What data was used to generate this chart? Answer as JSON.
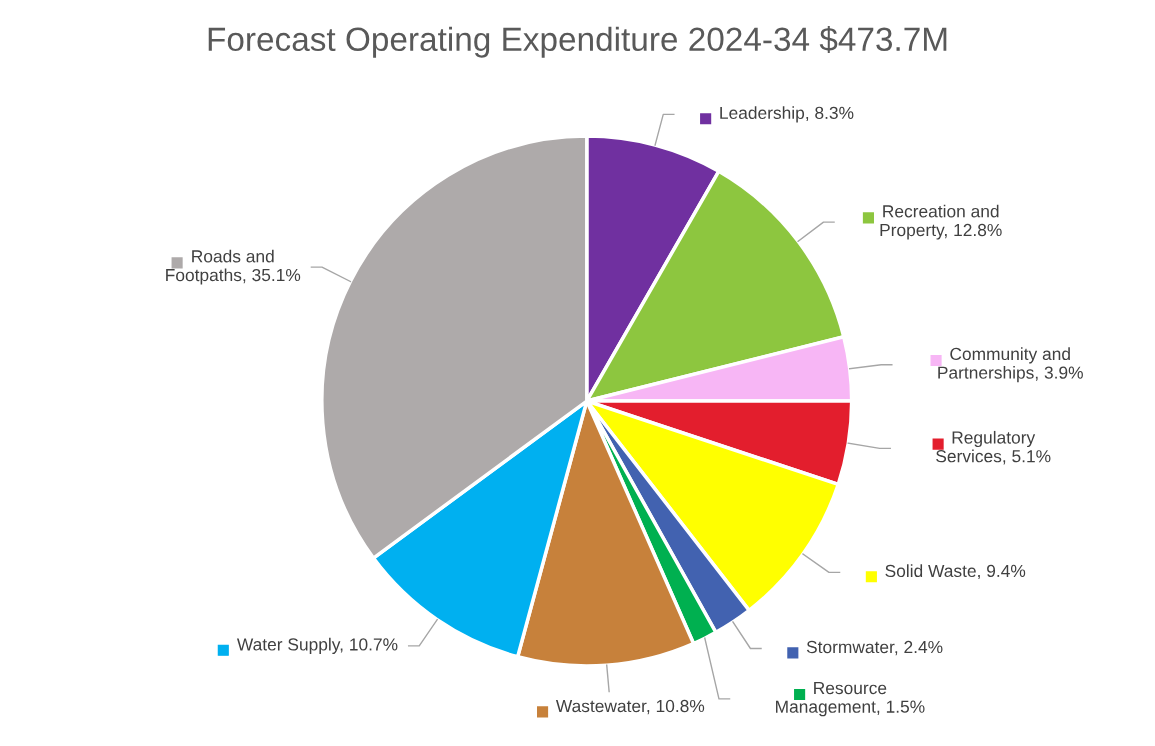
{
  "chart_data": {
    "type": "pie",
    "title": "Forecast Operating Expenditure 2024-34 $473.7M",
    "categories": [
      "Leadership",
      "Recreation and Property",
      "Community and Partnerships",
      "Regulatory Services",
      "Solid Waste",
      "Stormwater",
      "Resource Management",
      "Wastewater",
      "Water Supply",
      "Roads and Footpaths"
    ],
    "values": [
      8.3,
      12.8,
      3.9,
      5.1,
      9.4,
      2.4,
      1.5,
      10.8,
      10.7,
      35.1
    ],
    "value_labels": [
      "8.3%",
      "12.8%",
      "3.9%",
      "5.1%",
      "9.4%",
      "2.4%",
      "1.5%",
      "10.8%",
      "10.7%",
      "35.1%"
    ],
    "colors": [
      "#7030a0",
      "#8dc63f",
      "#f7b6f5",
      "#e31e2d",
      "#ffff00",
      "#4262b0",
      "#00b050",
      "#c7813b",
      "#00b0f0",
      "#aeaaaa"
    ],
    "legend": "right"
  }
}
